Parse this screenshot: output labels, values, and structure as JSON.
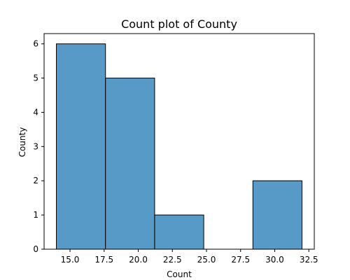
{
  "chart_data": {
    "type": "bar",
    "title": "Count plot of County",
    "xlabel": "Count",
    "ylabel": "County",
    "bins": [
      {
        "start": 14.0,
        "end": 17.6,
        "value": 6
      },
      {
        "start": 17.6,
        "end": 21.2,
        "value": 5
      },
      {
        "start": 21.2,
        "end": 24.8,
        "value": 1
      },
      {
        "start": 24.8,
        "end": 28.4,
        "value": 0
      },
      {
        "start": 28.4,
        "end": 32.0,
        "value": 2
      }
    ],
    "xlim": [
      13.1,
      32.9
    ],
    "ylim": [
      0,
      6.3
    ],
    "xticks": [
      15.0,
      17.5,
      20.0,
      22.5,
      25.0,
      27.5,
      30.0,
      32.5
    ],
    "xtick_labels": [
      "15.0",
      "17.5",
      "20.0",
      "22.5",
      "25.0",
      "27.5",
      "30.0",
      "32.5"
    ],
    "yticks": [
      0,
      1,
      2,
      3,
      4,
      5,
      6
    ],
    "ytick_labels": [
      "0",
      "1",
      "2",
      "3",
      "4",
      "5",
      "6"
    ],
    "bar_color": "#5799c7",
    "grid": false
  }
}
